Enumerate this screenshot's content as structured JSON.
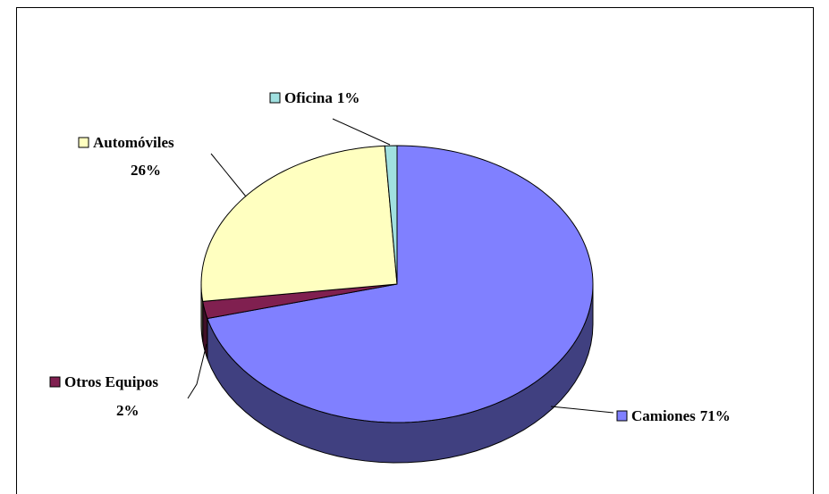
{
  "chart_data": {
    "type": "pie",
    "categories": [
      "Camiones",
      "Otros Equipos",
      "Automóviles",
      "Oficina"
    ],
    "values": [
      71,
      2,
      26,
      1
    ],
    "value_labels": [
      "71%",
      "2%",
      "26%",
      "1%"
    ],
    "colors": [
      "#8080ff",
      "#802050",
      "#ffffc0",
      "#a0e0e0"
    ],
    "start_angle": 0,
    "direction": "clockwise"
  }
}
